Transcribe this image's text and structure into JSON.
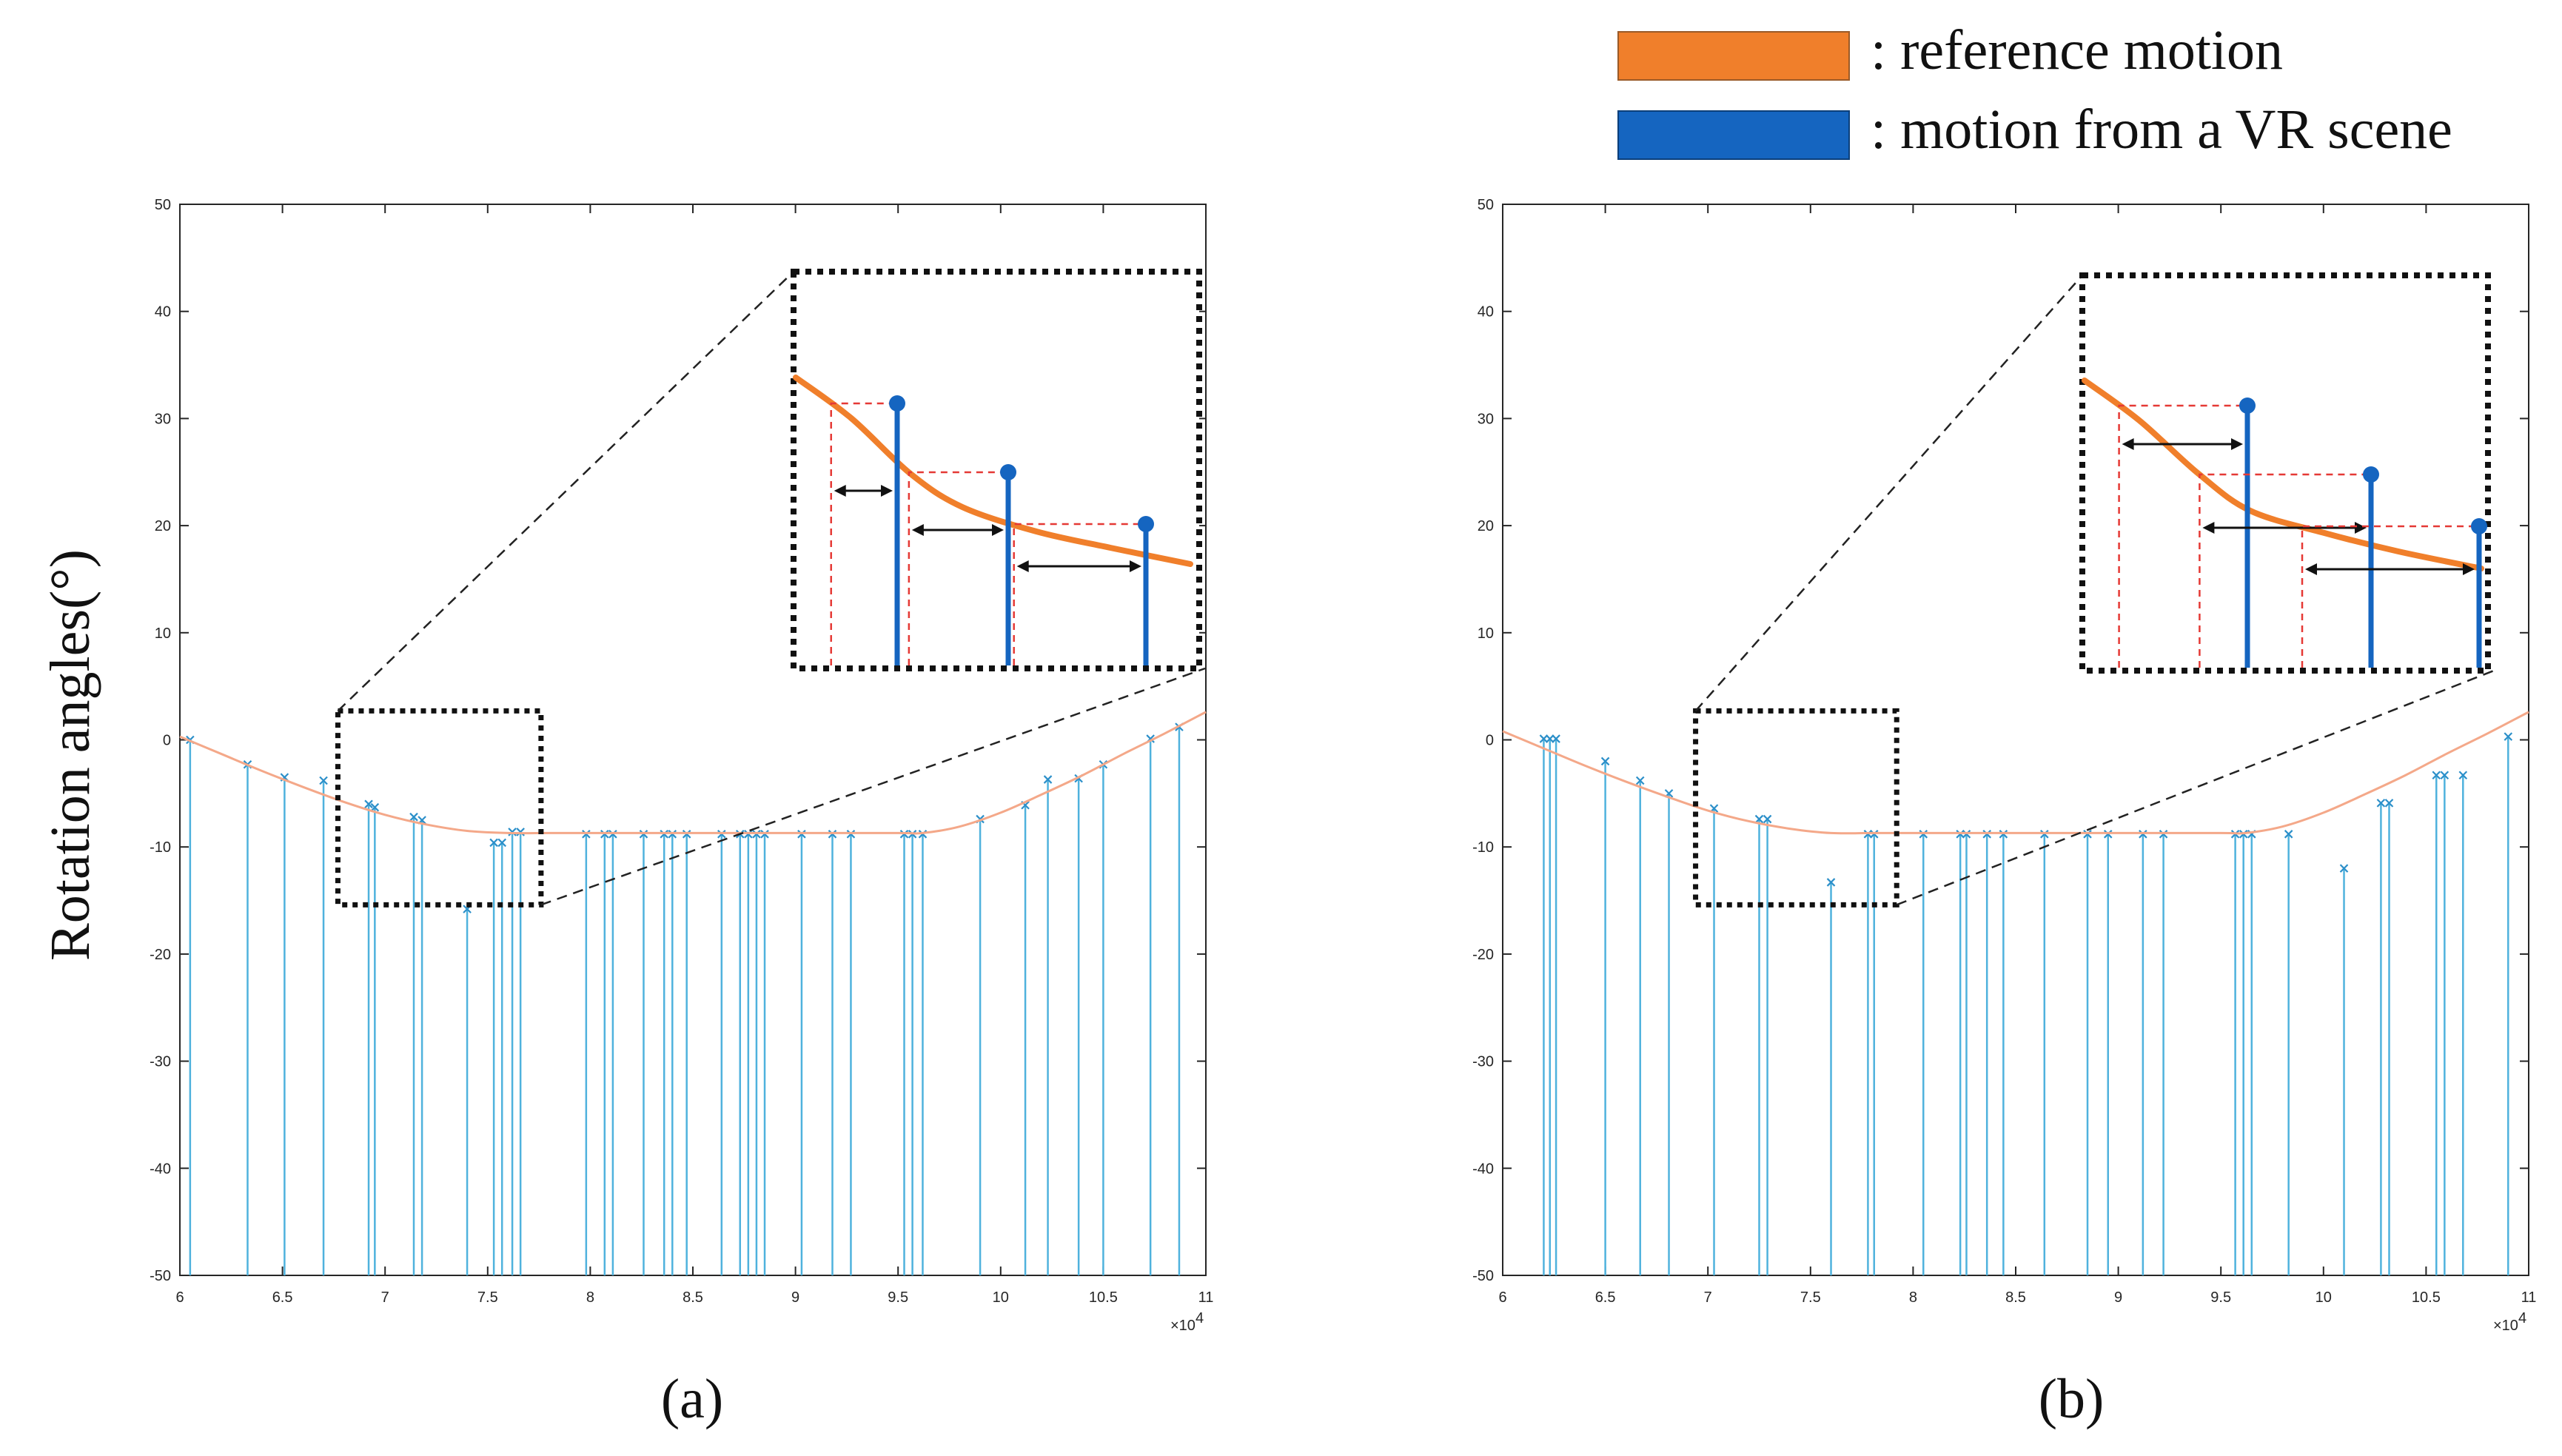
{
  "figure": {
    "ylabel": "Rotation angles(°)",
    "exp_label": "×10",
    "exp_power": "4",
    "legend": [
      {
        "label": ": reference motion",
        "color": "#f07f2b"
      },
      {
        "label": ": motion from a VR scene",
        "color": "#1565c0"
      }
    ]
  },
  "colors": {
    "reference_thin": "#f4a889",
    "stem": "#4fb2dd",
    "marker": "#2b8fc9",
    "inset_ref": "#f07f2b",
    "inset_stem": "#1565c0",
    "guide": "#e53935"
  },
  "chart_data": [
    {
      "type": "line+stem",
      "caption": "(a)",
      "xlim": [
        6,
        11
      ],
      "ylim": [
        -50,
        50
      ],
      "xticks": [
        "6",
        "6.5",
        "7",
        "7.5",
        "8",
        "8.5",
        "9",
        "9.5",
        "10",
        "10.5",
        "11"
      ],
      "yticks": [
        "50",
        "40",
        "30",
        "20",
        "10",
        "0",
        "-10",
        "-20",
        "-30",
        "-40",
        "-50"
      ],
      "reference": {
        "x": [
          6.0,
          6.2,
          6.4,
          6.6,
          6.8,
          7.0,
          7.2,
          7.4,
          7.6,
          7.8,
          8.0,
          8.5,
          9.0,
          9.5,
          9.62,
          9.8,
          10.0,
          10.2,
          10.4,
          10.6,
          10.8,
          11.0
        ],
        "y": [
          0.3,
          -1.3,
          -2.9,
          -4.4,
          -5.8,
          -7.0,
          -7.9,
          -8.5,
          -8.7,
          -8.7,
          -8.7,
          -8.7,
          -8.7,
          -8.7,
          -8.7,
          -8.1,
          -6.8,
          -5.1,
          -3.3,
          -1.3,
          0.6,
          2.6
        ]
      },
      "stems": {
        "x": [
          6.05,
          6.33,
          6.51,
          6.7,
          6.92,
          6.95,
          7.14,
          7.18,
          7.4,
          7.53,
          7.57,
          7.62,
          7.66,
          7.98,
          8.07,
          8.11,
          8.26,
          8.36,
          8.4,
          8.47,
          8.64,
          8.73,
          8.77,
          8.81,
          8.85,
          9.03,
          9.18,
          9.27,
          9.53,
          9.57,
          9.62,
          9.9,
          10.12,
          10.23,
          10.38,
          10.5,
          10.73,
          10.87
        ],
        "y": [
          0.0,
          -2.3,
          -3.5,
          -3.8,
          -6.0,
          -6.3,
          -7.2,
          -7.5,
          -15.8,
          -9.6,
          -9.6,
          -8.6,
          -8.6,
          -8.8,
          -8.8,
          -8.8,
          -8.8,
          -8.8,
          -8.8,
          -8.8,
          -8.8,
          -8.8,
          -8.8,
          -8.8,
          -8.8,
          -8.8,
          -8.8,
          -8.8,
          -8.8,
          -8.8,
          -8.8,
          -7.4,
          -6.1,
          -3.7,
          -3.6,
          -2.3,
          0.1,
          1.2
        ]
      },
      "zoom_box": {
        "x": [
          6.77,
          7.76
        ],
        "y": [
          -15.4,
          2.7
        ]
      }
    },
    {
      "type": "line+stem",
      "caption": "(b)",
      "xlim": [
        6,
        11
      ],
      "ylim": [
        -50,
        50
      ],
      "xticks": [
        "6",
        "6.5",
        "7",
        "7.5",
        "8",
        "8.5",
        "9",
        "9.5",
        "10",
        "10.5",
        "11"
      ],
      "yticks": [
        "50",
        "40",
        "30",
        "20",
        "10",
        "0",
        "-10",
        "-20",
        "-30",
        "-40",
        "-50"
      ],
      "reference": {
        "x": [
          6.0,
          6.2,
          6.4,
          6.6,
          6.8,
          7.0,
          7.2,
          7.4,
          7.6,
          7.8,
          8.0,
          8.5,
          9.0,
          9.5,
          9.62,
          9.8,
          10.0,
          10.2,
          10.4,
          10.6,
          10.8,
          11.0
        ],
        "y": [
          0.8,
          -0.8,
          -2.4,
          -3.9,
          -5.3,
          -6.6,
          -7.6,
          -8.3,
          -8.7,
          -8.7,
          -8.7,
          -8.7,
          -8.7,
          -8.7,
          -8.7,
          -8.1,
          -6.8,
          -5.1,
          -3.3,
          -1.3,
          0.6,
          2.6
        ]
      },
      "stems": {
        "x": [
          6.2,
          6.23,
          6.26,
          6.5,
          6.67,
          6.81,
          7.03,
          7.25,
          7.29,
          7.6,
          7.78,
          7.81,
          8.05,
          8.23,
          8.26,
          8.36,
          8.44,
          8.64,
          8.85,
          8.95,
          9.12,
          9.22,
          9.57,
          9.61,
          9.65,
          9.83,
          10.1,
          10.28,
          10.32,
          10.55,
          10.59,
          10.68,
          10.9
        ],
        "y": [
          0.1,
          0.1,
          0.1,
          -2.0,
          -3.8,
          -5.0,
          -6.4,
          -7.4,
          -7.4,
          -13.3,
          -8.8,
          -8.8,
          -8.8,
          -8.8,
          -8.8,
          -8.8,
          -8.8,
          -8.8,
          -8.8,
          -8.8,
          -8.8,
          -8.8,
          -8.8,
          -8.8,
          -8.8,
          -8.8,
          -12.0,
          -5.9,
          -5.9,
          -3.3,
          -3.3,
          -3.3,
          0.3
        ]
      },
      "zoom_box": {
        "x": [
          6.94,
          7.92
        ],
        "y": [
          -15.4,
          2.7
        ]
      }
    }
  ]
}
